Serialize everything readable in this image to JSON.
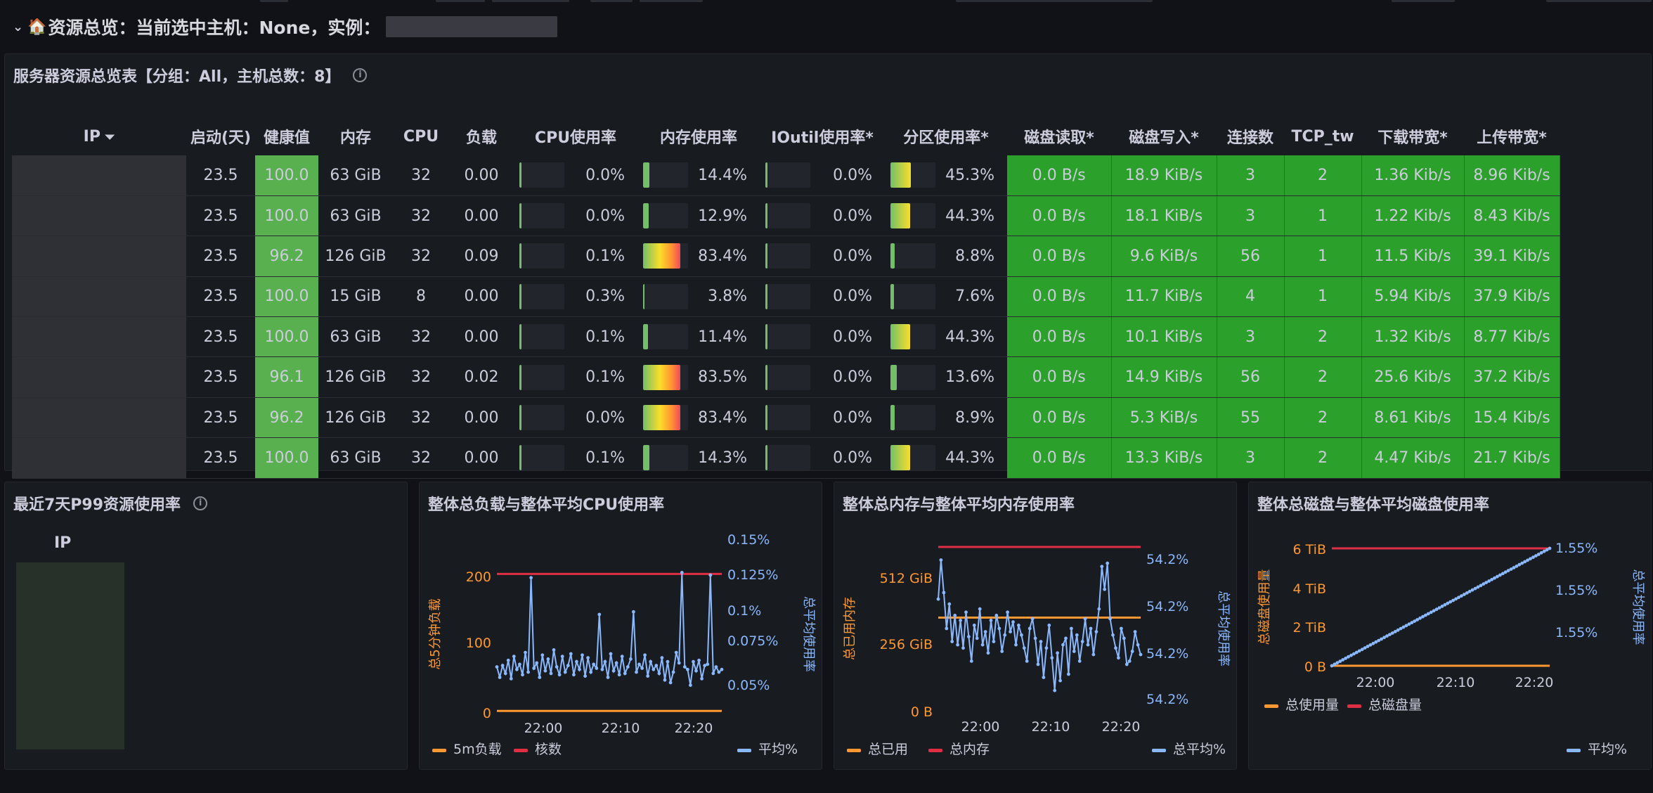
{
  "row_header": {
    "title": "资源总览：当前选中主机：None，实例："
  },
  "server_panel": {
    "title": "服务器资源总览表【分组：All，主机总数：8】",
    "columns": [
      "IP",
      "启动(天)",
      "健康值",
      "内存",
      "CPU",
      "负载",
      "CPU使用率",
      "内存使用率",
      "IOutil使用率*",
      "分区使用率*",
      "磁盘读取*",
      "磁盘写入*",
      "连接数",
      "TCP_tw",
      "下载带宽*",
      "上传带宽*"
    ],
    "rows": [
      {
        "uptime": "23.5",
        "health": "100.0",
        "mem": "63 GiB",
        "cpu": "32",
        "load": "0.00",
        "cpu_usage": "0.0%",
        "mem_usage": "14.4%",
        "ioutil": "0.0%",
        "partition": "45.3%",
        "disk_read": "0.0 B/s",
        "disk_write": "18.9 KiB/s",
        "conn": "3",
        "tcp_tw": "2",
        "download": "1.36 Kib/s",
        "upload": "8.96 Kib/s"
      },
      {
        "uptime": "23.5",
        "health": "100.0",
        "mem": "63 GiB",
        "cpu": "32",
        "load": "0.00",
        "cpu_usage": "0.0%",
        "mem_usage": "12.9%",
        "ioutil": "0.0%",
        "partition": "44.3%",
        "disk_read": "0.0 B/s",
        "disk_write": "18.1 KiB/s",
        "conn": "3",
        "tcp_tw": "1",
        "download": "1.22 Kib/s",
        "upload": "8.43 Kib/s"
      },
      {
        "uptime": "23.5",
        "health": "96.2",
        "mem": "126 GiB",
        "cpu": "32",
        "load": "0.09",
        "cpu_usage": "0.1%",
        "mem_usage": "83.4%",
        "ioutil": "0.0%",
        "partition": "8.8%",
        "disk_read": "0.0 B/s",
        "disk_write": "9.6 KiB/s",
        "conn": "56",
        "tcp_tw": "1",
        "download": "11.5 Kib/s",
        "upload": "39.1 Kib/s"
      },
      {
        "uptime": "23.5",
        "health": "100.0",
        "mem": "15 GiB",
        "cpu": "8",
        "load": "0.00",
        "cpu_usage": "0.3%",
        "mem_usage": "3.8%",
        "ioutil": "0.0%",
        "partition": "7.6%",
        "disk_read": "0.0 B/s",
        "disk_write": "11.7 KiB/s",
        "conn": "4",
        "tcp_tw": "1",
        "download": "5.94 Kib/s",
        "upload": "37.9 Kib/s"
      },
      {
        "uptime": "23.5",
        "health": "100.0",
        "mem": "63 GiB",
        "cpu": "32",
        "load": "0.00",
        "cpu_usage": "0.1%",
        "mem_usage": "11.4%",
        "ioutil": "0.0%",
        "partition": "44.3%",
        "disk_read": "0.0 B/s",
        "disk_write": "10.1 KiB/s",
        "conn": "3",
        "tcp_tw": "2",
        "download": "1.32 Kib/s",
        "upload": "8.77 Kib/s"
      },
      {
        "uptime": "23.5",
        "health": "96.1",
        "mem": "126 GiB",
        "cpu": "32",
        "load": "0.02",
        "cpu_usage": "0.1%",
        "mem_usage": "83.5%",
        "ioutil": "0.0%",
        "partition": "13.6%",
        "disk_read": "0.0 B/s",
        "disk_write": "14.9 KiB/s",
        "conn": "56",
        "tcp_tw": "2",
        "download": "25.6 Kib/s",
        "upload": "37.2 Kib/s"
      },
      {
        "uptime": "23.5",
        "health": "96.2",
        "mem": "126 GiB",
        "cpu": "32",
        "load": "0.00",
        "cpu_usage": "0.0%",
        "mem_usage": "83.4%",
        "ioutil": "0.0%",
        "partition": "8.9%",
        "disk_read": "0.0 B/s",
        "disk_write": "5.3 KiB/s",
        "conn": "55",
        "tcp_tw": "2",
        "download": "8.61 Kib/s",
        "upload": "15.4 Kib/s"
      },
      {
        "uptime": "23.5",
        "health": "100.0",
        "mem": "63 GiB",
        "cpu": "32",
        "load": "0.00",
        "cpu_usage": "0.1%",
        "mem_usage": "14.3%",
        "ioutil": "0.0%",
        "partition": "44.3%",
        "disk_read": "0.0 B/s",
        "disk_write": "13.3 KiB/s",
        "conn": "3",
        "tcp_tw": "2",
        "download": "4.47 Kib/s",
        "upload": "21.7 Kib/s"
      }
    ]
  },
  "p99_panel": {
    "title": "最近7天P99资源使用率",
    "column": "IP"
  },
  "chart_data": [
    {
      "type": "line",
      "title": "整体总负载与整体平均CPU使用率",
      "x_ticks": [
        "22:00",
        "22:10",
        "22:20"
      ],
      "y_left": {
        "label": "总5分钟负载",
        "ticks": [
          "0",
          "100",
          "200"
        ],
        "range": [
          0,
          270
        ]
      },
      "y_right": {
        "label": "总平均使用率",
        "ticks": [
          "0.05%",
          "0.075%",
          "0.1%",
          "0.125%",
          "0.15%"
        ],
        "range": [
          0.036,
          0.154
        ]
      },
      "series": [
        {
          "name": "5m负载",
          "axis": "left",
          "color": "#ff9830",
          "values": [
            1,
            1,
            1,
            1,
            1,
            1,
            1,
            1,
            1,
            1,
            1,
            1,
            1,
            1,
            1,
            1,
            1,
            1,
            1,
            1,
            1,
            1,
            1,
            1,
            1,
            1,
            1,
            1,
            1,
            1,
            1,
            1,
            1,
            1,
            1,
            1,
            1,
            1,
            1,
            1,
            1,
            1,
            1,
            1,
            1,
            1,
            1,
            1,
            1,
            1,
            1,
            1,
            1,
            1,
            1,
            1,
            1,
            1,
            1,
            1,
            1,
            1,
            1,
            1,
            1,
            1,
            1,
            1,
            1,
            1,
            1,
            1,
            1,
            1,
            1,
            1,
            1,
            1,
            1,
            1
          ]
        },
        {
          "name": "核数",
          "axis": "left",
          "color": "#e02f44",
          "values": [
            240,
            240,
            240,
            240,
            240,
            240,
            240,
            240,
            240,
            240,
            240,
            240,
            240,
            240,
            240,
            240,
            240,
            240,
            240,
            240,
            240,
            240,
            240,
            240,
            240,
            240,
            240,
            240,
            240,
            240,
            240,
            240,
            240,
            240,
            240,
            240,
            240,
            240,
            240,
            240,
            240,
            240,
            240,
            240,
            240,
            240,
            240,
            240,
            240,
            240,
            240,
            240,
            240,
            240,
            240,
            240,
            240,
            240,
            240,
            240,
            240,
            240,
            240,
            240,
            240,
            240,
            240,
            240,
            240,
            240,
            240,
            240,
            240,
            240,
            240,
            240,
            240,
            240,
            240,
            240
          ]
        },
        {
          "name": "平均%",
          "axis": "right",
          "color": "#8ab8ff",
          "values": [
            0.07,
            0.062,
            0.071,
            0.065,
            0.075,
            0.061,
            0.078,
            0.068,
            0.072,
            0.064,
            0.081,
            0.066,
            0.138,
            0.069,
            0.073,
            0.062,
            0.079,
            0.067,
            0.076,
            0.065,
            0.083,
            0.07,
            0.064,
            0.078,
            0.066,
            0.071,
            0.08,
            0.064,
            0.074,
            0.068,
            0.079,
            0.063,
            0.077,
            0.066,
            0.072,
            0.069,
            0.11,
            0.068,
            0.074,
            0.062,
            0.08,
            0.067,
            0.073,
            0.064,
            0.078,
            0.065,
            0.07,
            0.076,
            0.112,
            0.066,
            0.072,
            0.069,
            0.079,
            0.063,
            0.074,
            0.068,
            0.071,
            0.065,
            0.077,
            0.06,
            0.074,
            0.058,
            0.066,
            0.081,
            0.073,
            0.142,
            0.07,
            0.068,
            0.056,
            0.074,
            0.067,
            0.075,
            0.061,
            0.071,
            0.072,
            0.14,
            0.065,
            0.07,
            0.066,
            0.068
          ]
        }
      ]
    },
    {
      "type": "line",
      "title": "整体总内存与整体平均内存使用率",
      "x_ticks": [
        "22:00",
        "22:10",
        "22:20"
      ],
      "y_left": {
        "label": "总已用内存",
        "ticks": [
          "0 B",
          "256 GiB",
          "512 GiB"
        ],
        "range": [
          0,
          600
        ]
      },
      "y_right": {
        "label": "总平均使用率",
        "ticks": [
          "54.2%",
          "54.2%",
          "54.2%",
          "54.2%"
        ],
        "range": [
          0,
          1
        ]
      },
      "series": [
        {
          "name": "总已用",
          "axis": "left",
          "color": "#ff9830",
          "values": [
            340,
            340,
            340,
            340,
            340,
            340,
            340,
            340,
            340,
            340,
            340,
            340,
            340,
            340,
            340,
            340,
            340,
            340,
            340,
            340,
            340,
            340,
            340,
            340,
            340,
            340,
            340,
            340,
            340,
            340,
            340,
            340,
            340,
            340,
            340,
            340,
            340,
            340,
            340,
            340,
            340,
            340,
            340,
            340,
            340,
            340,
            340,
            340,
            340,
            340,
            340,
            340,
            340,
            340,
            340,
            340,
            340,
            340,
            340,
            340,
            340,
            340,
            340,
            340,
            340,
            340,
            340,
            340,
            340,
            340,
            340,
            340,
            340,
            340,
            340,
            340,
            340,
            340,
            340,
            340
          ]
        },
        {
          "name": "总内存",
          "axis": "left",
          "color": "#e02f44",
          "values": [
            600,
            600,
            600,
            600,
            600,
            600,
            600,
            600,
            600,
            600,
            600,
            600,
            600,
            600,
            600,
            600,
            600,
            600,
            600,
            600,
            600,
            600,
            600,
            600,
            600,
            600,
            600,
            600,
            600,
            600,
            600,
            600,
            600,
            600,
            600,
            600,
            600,
            600,
            600,
            600,
            600,
            600,
            600,
            600,
            600,
            600,
            600,
            600,
            600,
            600,
            600,
            600,
            600,
            600,
            600,
            600,
            600,
            600,
            600,
            600,
            600,
            600,
            600,
            600,
            600,
            600,
            600,
            600,
            600,
            600,
            600,
            600,
            600,
            600,
            600,
            600,
            600,
            600,
            600,
            600
          ]
        },
        {
          "name": "总平均%",
          "axis": "right",
          "color": "#8ab8ff",
          "values": [
            0.68,
            0.92,
            0.72,
            0.5,
            0.65,
            0.42,
            0.58,
            0.4,
            0.55,
            0.38,
            0.6,
            0.45,
            0.3,
            0.52,
            0.44,
            0.62,
            0.4,
            0.48,
            0.35,
            0.55,
            0.42,
            0.58,
            0.5,
            0.36,
            0.46,
            0.6,
            0.48,
            0.54,
            0.4,
            0.52,
            0.46,
            0.38,
            0.3,
            0.5,
            0.56,
            0.44,
            0.28,
            0.42,
            0.2,
            0.38,
            0.52,
            0.32,
            0.12,
            0.35,
            0.18,
            0.4,
            0.44,
            0.22,
            0.5,
            0.36,
            0.46,
            0.3,
            0.42,
            0.56,
            0.4,
            0.5,
            0.34,
            0.48,
            0.62,
            0.88,
            0.74,
            0.9,
            0.56,
            0.46,
            0.38,
            0.32,
            0.5,
            0.44,
            0.28,
            0.3,
            0.36,
            0.48,
            0.4,
            0.34
          ]
        }
      ]
    },
    {
      "type": "line",
      "title": "整体总磁盘与整体平均磁盘使用率",
      "x_ticks": [
        "22:00",
        "22:10",
        "22:20"
      ],
      "y_left": {
        "label": "总磁盘使用量",
        "ticks": [
          "0 B",
          "2 TiB",
          "4 TiB",
          "6 TiB"
        ],
        "range": [
          0,
          6
        ]
      },
      "y_right": {
        "label": "总平均使用率",
        "ticks": [
          "1.55%",
          "1.55%",
          "1.55%"
        ],
        "range": [
          0,
          1
        ]
      },
      "series": [
        {
          "name": "总使用量",
          "axis": "left",
          "color": "#ff9830",
          "values": [
            0,
            0,
            0,
            0,
            0,
            0,
            0,
            0,
            0,
            0,
            0,
            0,
            0,
            0,
            0,
            0,
            0,
            0,
            0,
            0,
            0,
            0,
            0,
            0,
            0,
            0,
            0,
            0,
            0,
            0,
            0,
            0,
            0,
            0,
            0,
            0,
            0,
            0,
            0,
            0,
            0,
            0,
            0,
            0,
            0,
            0,
            0,
            0,
            0,
            0,
            0,
            0,
            0,
            0,
            0,
            0,
            0,
            0,
            0,
            0,
            0,
            0,
            0,
            0,
            0,
            0,
            0,
            0,
            0,
            0,
            0,
            0,
            0,
            0,
            0,
            0,
            0,
            0,
            0,
            0
          ]
        },
        {
          "name": "总磁盘量",
          "axis": "left",
          "color": "#e02f44",
          "values": [
            6,
            6,
            6,
            6,
            6,
            6,
            6,
            6,
            6,
            6,
            6,
            6,
            6,
            6,
            6,
            6,
            6,
            6,
            6,
            6,
            6,
            6,
            6,
            6,
            6,
            6,
            6,
            6,
            6,
            6,
            6,
            6,
            6,
            6,
            6,
            6,
            6,
            6,
            6,
            6,
            6,
            6,
            6,
            6,
            6,
            6,
            6,
            6,
            6,
            6,
            6,
            6,
            6,
            6,
            6,
            6,
            6,
            6,
            6,
            6,
            6,
            6,
            6,
            6,
            6,
            6,
            6,
            6,
            6,
            6,
            6,
            6,
            6,
            6,
            6,
            6,
            6,
            6,
            6,
            6
          ]
        },
        {
          "name": "平均%",
          "axis": "right",
          "color": "#8ab8ff",
          "values": [
            0,
            0.0127,
            0.0253,
            0.038,
            0.0506,
            0.0633,
            0.0759,
            0.0886,
            0.1013,
            0.1139,
            0.1266,
            0.1392,
            0.1519,
            0.1646,
            0.1772,
            0.1899,
            0.2025,
            0.2152,
            0.2278,
            0.2405,
            0.2532,
            0.2658,
            0.2785,
            0.2911,
            0.3038,
            0.3165,
            0.3291,
            0.3418,
            0.3544,
            0.3671,
            0.3797,
            0.3924,
            0.4051,
            0.4177,
            0.4304,
            0.443,
            0.4557,
            0.4684,
            0.481,
            0.4937,
            0.5063,
            0.519,
            0.5316,
            0.5443,
            0.557,
            0.5696,
            0.5823,
            0.5949,
            0.6076,
            0.6203,
            0.6329,
            0.6456,
            0.6582,
            0.6709,
            0.6835,
            0.6962,
            0.7089,
            0.7215,
            0.7342,
            0.7468,
            0.7595,
            0.7722,
            0.7848,
            0.7975,
            0.8101,
            0.8228,
            0.8354,
            0.8481,
            0.8608,
            0.8734,
            0.8861,
            0.8987,
            0.9114,
            0.9241,
            0.9367,
            0.9494,
            0.962,
            0.9747,
            0.9873,
            1
          ]
        }
      ]
    }
  ],
  "colors": {
    "health_green": "#59b04f",
    "bright_green": "#2ba02b",
    "link_blue": "#6e9fff",
    "orange": "#ff9830",
    "red": "#e02f44",
    "light_blue": "#8ab8ff"
  }
}
